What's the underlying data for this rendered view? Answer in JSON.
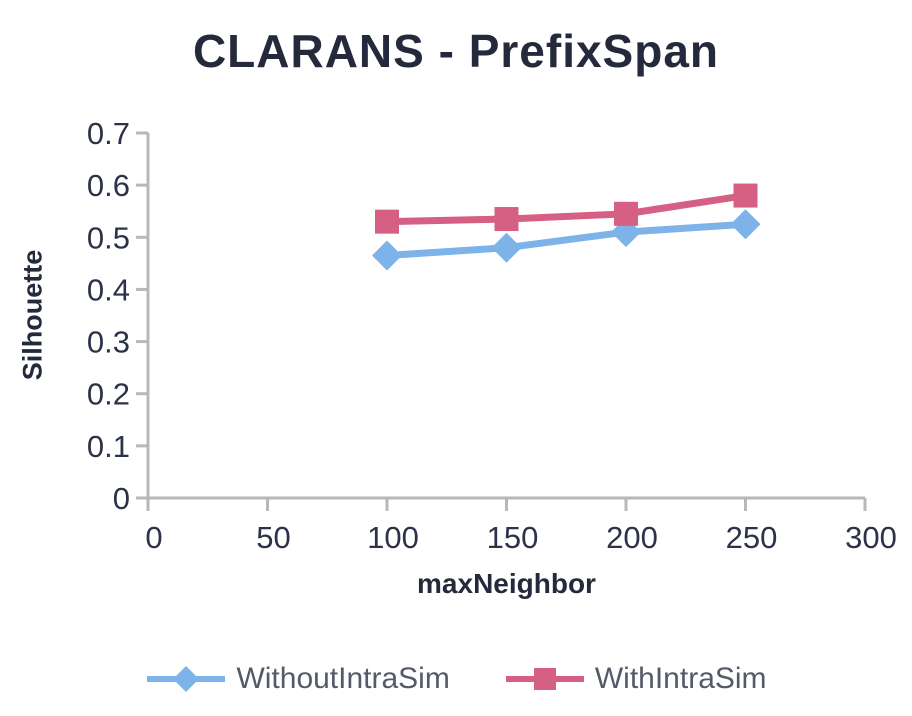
{
  "chart_data": {
    "type": "line",
    "title": "CLARANS - PrefixSpan",
    "xlabel": "maxNeighbor",
    "ylabel": "Silhouette",
    "x": [
      100,
      150,
      200,
      250
    ],
    "series": [
      {
        "name": "WithoutIntraSim",
        "marker": "diamond",
        "color": "#7db3e8",
        "values": [
          0.465,
          0.48,
          0.51,
          0.525
        ]
      },
      {
        "name": "WithIntraSim",
        "marker": "square",
        "color": "#d65f84",
        "values": [
          0.53,
          0.535,
          0.545,
          0.58
        ]
      }
    ],
    "xlim": [
      0,
      300
    ],
    "ylim": [
      0,
      0.7
    ],
    "xticks": [
      0,
      50,
      100,
      150,
      200,
      250,
      300
    ],
    "xtick_labels": [
      "0",
      "50",
      "100",
      "150",
      "200",
      "250",
      "300"
    ],
    "yticks": [
      0,
      0.1,
      0.2,
      0.3,
      0.4,
      0.5,
      0.6,
      0.7
    ],
    "ytick_labels": [
      "0",
      "0.1",
      "0.2",
      "0.3",
      "0.4",
      "0.5",
      "0.6",
      "0.7"
    ],
    "grid": false,
    "legend_position": "bottom",
    "colors": {
      "axis_line": "#b5b9b9",
      "tick_label": "#2c3349",
      "title_text": "#242a3b",
      "legend_text": "#545a68",
      "background": "#ffffff"
    }
  }
}
